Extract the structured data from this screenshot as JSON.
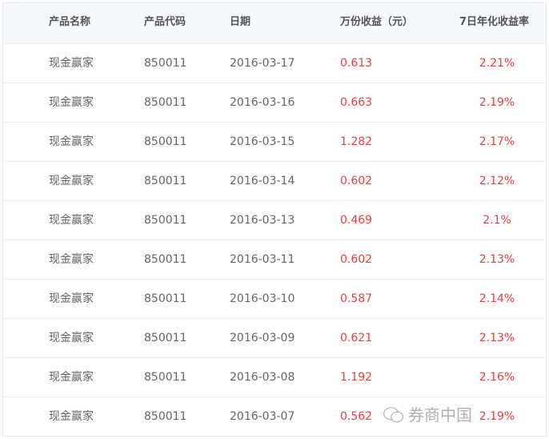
{
  "header": [
    "产品名称",
    "产品代码",
    "日期",
    "万份收益（元）",
    "7日年化收益率"
  ],
  "rows": [
    [
      "现金赢家",
      "850011",
      "2016-03-17",
      "0.613",
      "2.21%"
    ],
    [
      "现金赢家",
      "850011",
      "2016-03-16",
      "0.663",
      "2.19%"
    ],
    [
      "现金赢家",
      "850011",
      "2016-03-15",
      "1.282",
      "2.17%"
    ],
    [
      "现金赢家",
      "850011",
      "2016-03-14",
      "0.602",
      "2.12%"
    ],
    [
      "现金赢家",
      "850011",
      "2016-03-13",
      "0.469",
      "2.1%"
    ],
    [
      "现金赢家",
      "850011",
      "2016-03-11",
      "0.602",
      "2.13%"
    ],
    [
      "现金赢家",
      "850011",
      "2016-03-10",
      "0.587",
      "2.14%"
    ],
    [
      "现金赢家",
      "850011",
      "2016-03-09",
      "0.621",
      "2.13%"
    ],
    [
      "现金赢家",
      "850011",
      "2016-03-08",
      "1.192",
      "2.16%"
    ],
    [
      "现金赢家",
      "850011",
      "2016-03-07",
      "0.562",
      "2.19%"
    ]
  ],
  "watermark": {
    "text": "券商中国",
    "icon": "wechat-icon"
  },
  "colors": {
    "value_red": "#e8413f",
    "header_bg": "#f5f8fc"
  }
}
